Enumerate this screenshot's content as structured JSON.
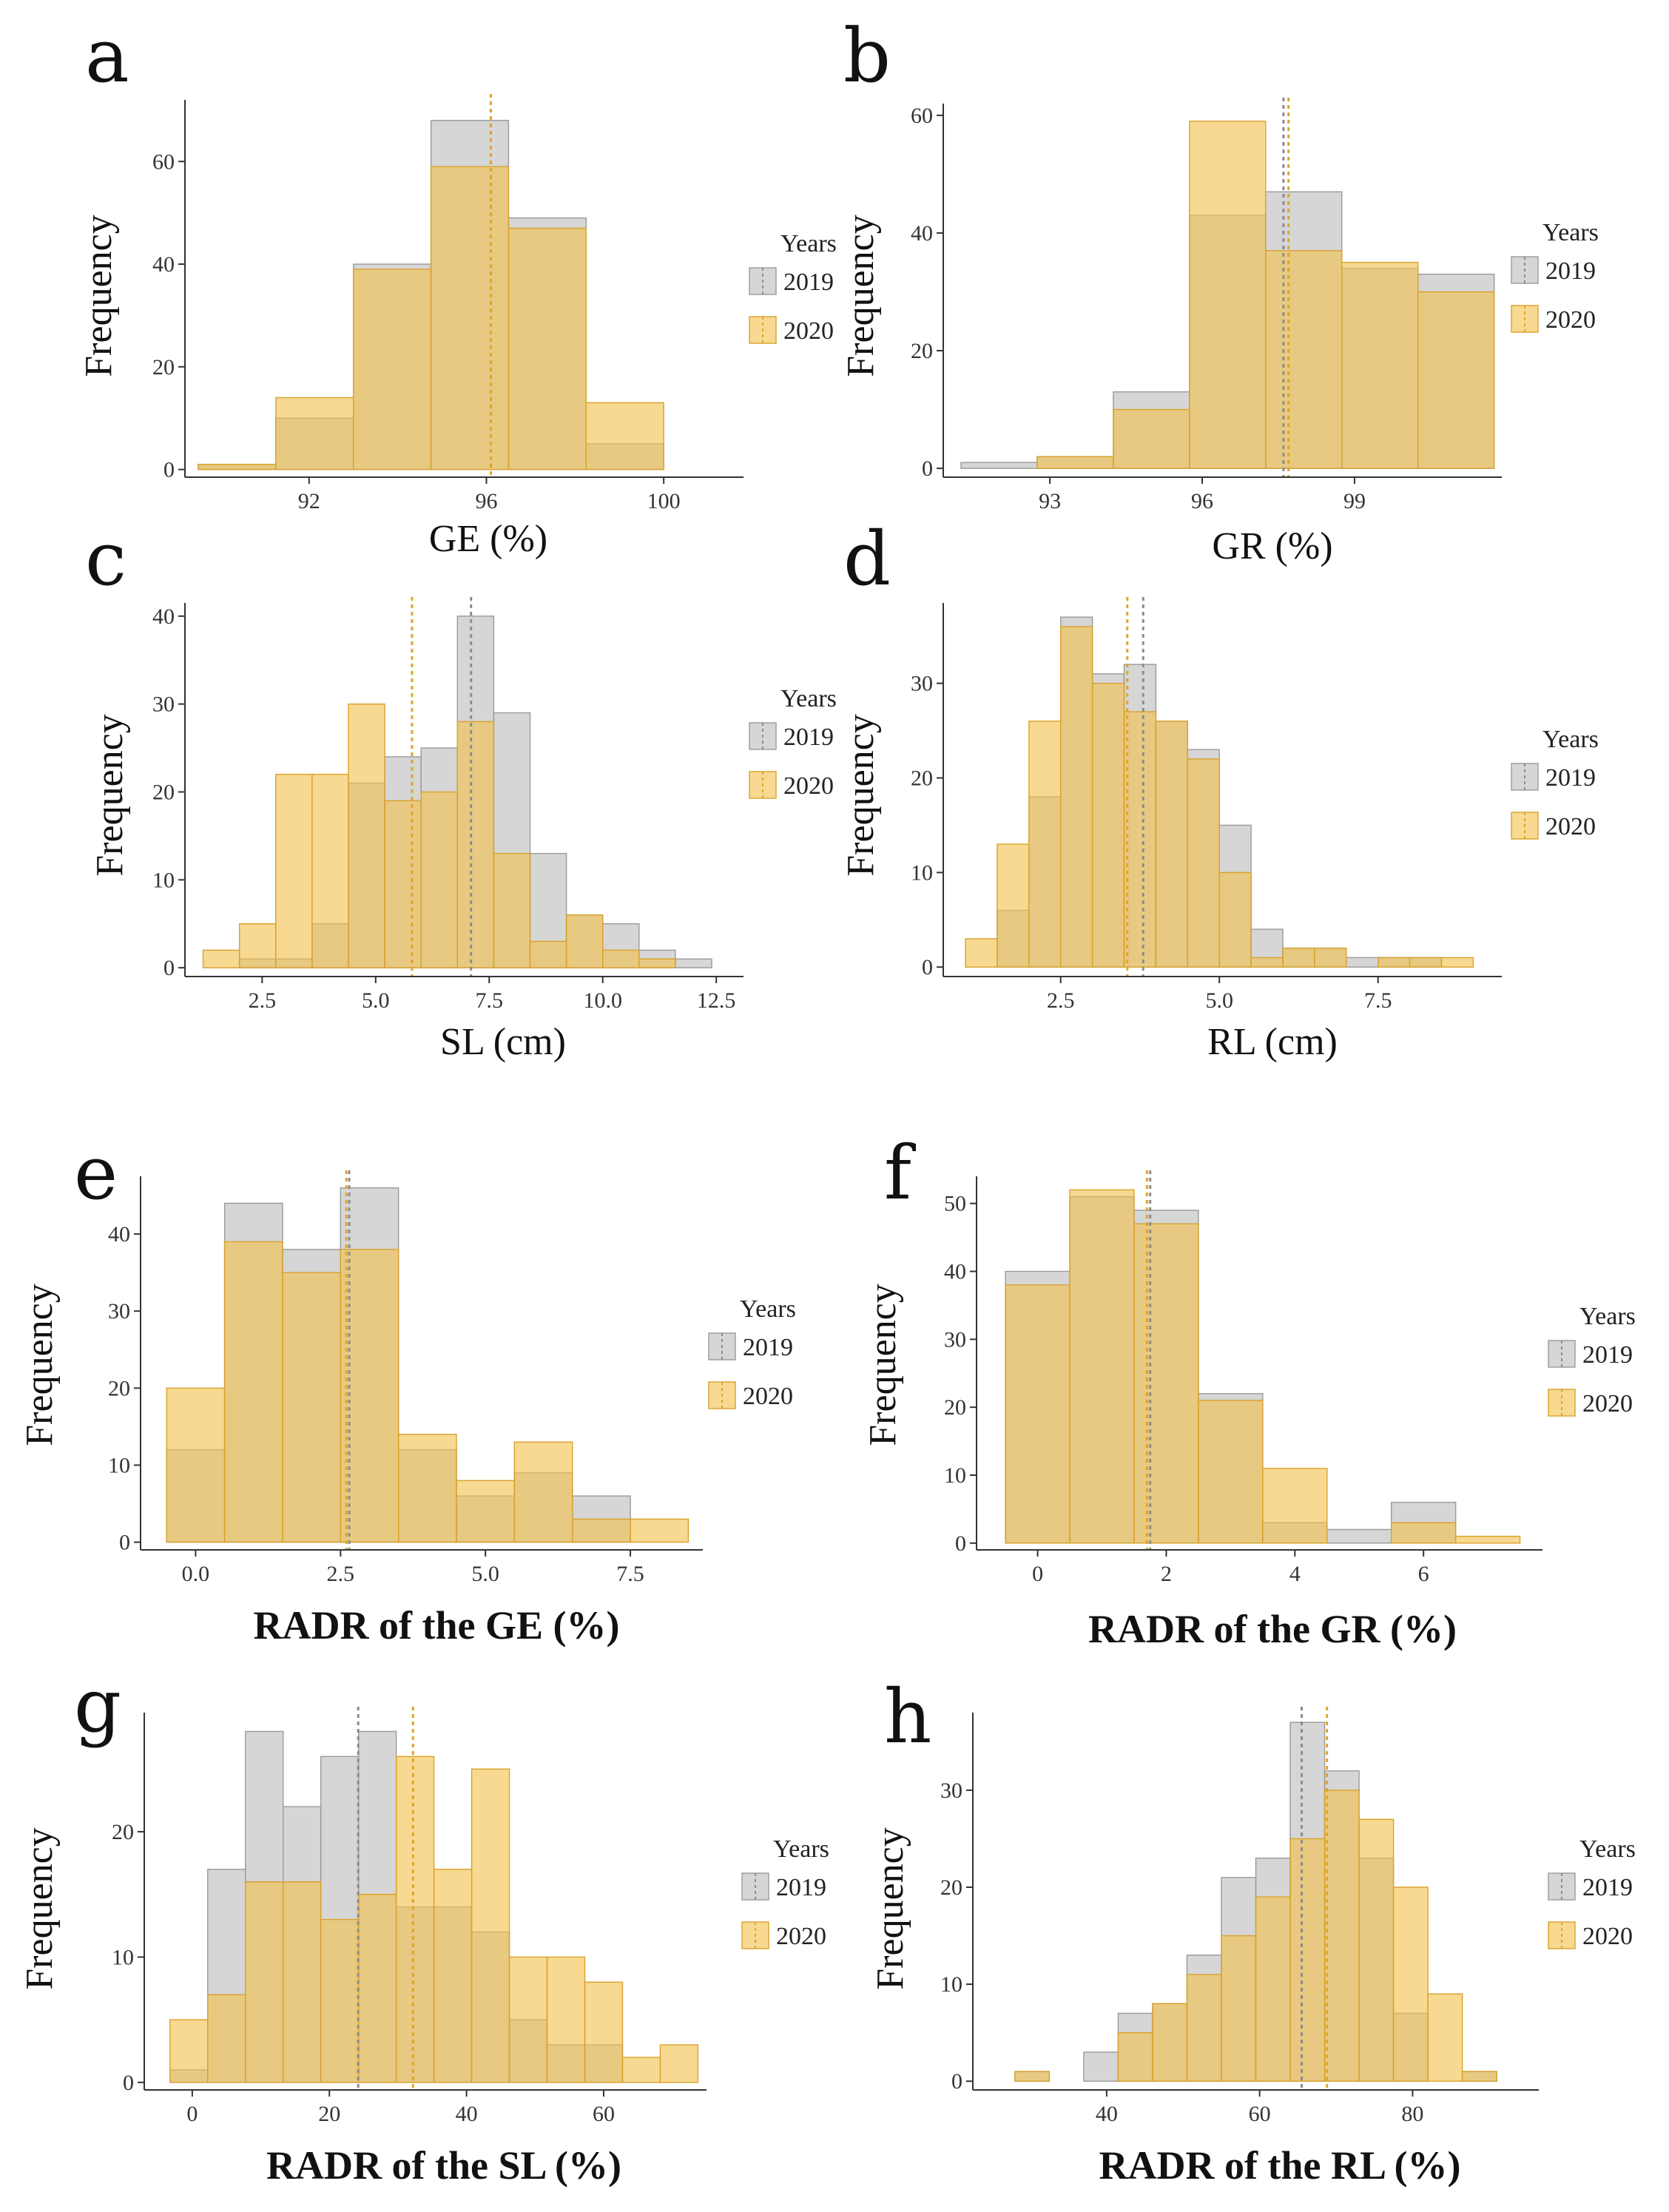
{
  "colors": {
    "y2019_fill": "#bdbdbd",
    "y2019_stroke": "#9a9a9a",
    "y2020_fill": "#f2c14e",
    "y2020_stroke": "#d9a22b",
    "axis": "#333333"
  },
  "chart_data": [
    {
      "panel": "a",
      "type": "bar",
      "xlabel": "GE (%)",
      "ylabel": "Frequency",
      "xlim": [
        89.2,
        101.8
      ],
      "ylim": [
        -1.5,
        72
      ],
      "xticks": [
        92,
        96,
        100
      ],
      "yticks": [
        0,
        20,
        40,
        60
      ],
      "bin_edges": [
        89.5,
        91.25,
        93.0,
        94.75,
        96.5,
        98.25,
        100.0,
        101.75
      ],
      "series": [
        {
          "name": "2019",
          "values": [
            1,
            10,
            40,
            68,
            49,
            5,
            0
          ]
        },
        {
          "name": "2020",
          "values": [
            1,
            14,
            39,
            59,
            47,
            13,
            0
          ]
        }
      ],
      "mean_lines": [
        {
          "name": "2019",
          "x": 96.1
        },
        {
          "name": "2020",
          "x": 96.1
        }
      ],
      "legend": {
        "title": "Years",
        "entries": [
          "2019",
          "2020"
        ]
      }
    },
    {
      "panel": "b",
      "type": "bar",
      "xlabel": "GR (%)",
      "ylabel": "Frequency",
      "xlim": [
        90.9,
        101.9
      ],
      "ylim": [
        -1.5,
        62
      ],
      "xticks": [
        93,
        96,
        99
      ],
      "yticks": [
        0,
        20,
        40,
        60
      ],
      "bin_edges": [
        91.25,
        92.75,
        94.25,
        95.75,
        97.25,
        98.75,
        100.25,
        101.75
      ],
      "series": [
        {
          "name": "2019",
          "values": [
            1,
            2,
            13,
            43,
            47,
            34,
            33
          ]
        },
        {
          "name": "2020",
          "values": [
            0,
            2,
            10,
            59,
            37,
            35,
            30
          ]
        }
      ],
      "mean_lines": [
        {
          "name": "2019",
          "x": 97.6
        },
        {
          "name": "2020",
          "x": 97.7
        }
      ],
      "legend": {
        "title": "Years",
        "entries": [
          "2019",
          "2020"
        ]
      }
    },
    {
      "panel": "c",
      "type": "bar",
      "xlabel": "SL (cm)",
      "ylabel": "Frequency",
      "xlim": [
        0.8,
        13.1
      ],
      "ylim": [
        -1,
        41.5
      ],
      "xticks": [
        2.5,
        5.0,
        7.5,
        10.0,
        12.5
      ],
      "yticks": [
        0,
        10,
        20,
        30,
        40
      ],
      "bin_edges": [
        1.2,
        2.0,
        2.8,
        3.6,
        4.4,
        5.2,
        6.0,
        6.8,
        7.6,
        8.4,
        9.2,
        10.0,
        10.8,
        11.6,
        12.4
      ],
      "series": [
        {
          "name": "2019",
          "values": [
            0,
            1,
            1,
            5,
            21,
            24,
            25,
            40,
            29,
            13,
            6,
            5,
            2,
            1
          ]
        },
        {
          "name": "2020",
          "values": [
            2,
            5,
            22,
            22,
            30,
            19,
            20,
            28,
            13,
            3,
            6,
            2,
            1,
            0
          ]
        }
      ],
      "mean_lines": [
        {
          "name": "2019",
          "x": 7.1
        },
        {
          "name": "2020",
          "x": 5.8
        }
      ],
      "legend": {
        "title": "Years",
        "entries": [
          "2019",
          "2020"
        ]
      }
    },
    {
      "panel": "d",
      "type": "bar",
      "xlabel": "RL (cm)",
      "ylabel": "Frequency",
      "xlim": [
        0.65,
        9.45
      ],
      "ylim": [
        -1,
        38.5
      ],
      "xticks": [
        2.5,
        5.0,
        7.5
      ],
      "yticks": [
        0,
        10,
        20,
        30
      ],
      "bin_edges": [
        1.0,
        1.5,
        2.0,
        2.5,
        3.0,
        3.5,
        4.0,
        4.5,
        5.0,
        5.5,
        6.0,
        6.5,
        7.0,
        7.5,
        8.0,
        8.5,
        9.0
      ],
      "series": [
        {
          "name": "2019",
          "values": [
            0,
            6,
            18,
            37,
            31,
            32,
            26,
            23,
            15,
            4,
            2,
            2,
            1,
            1,
            1,
            0
          ]
        },
        {
          "name": "2020",
          "values": [
            3,
            13,
            26,
            36,
            30,
            27,
            26,
            22,
            10,
            1,
            2,
            2,
            0,
            1,
            1,
            1
          ]
        }
      ],
      "mean_lines": [
        {
          "name": "2019",
          "x": 3.8
        },
        {
          "name": "2020",
          "x": 3.55
        }
      ],
      "legend": {
        "title": "Years",
        "entries": [
          "2019",
          "2020"
        ]
      }
    },
    {
      "panel": "e",
      "type": "bar",
      "xlabel": "RADR of the GE (%)",
      "ylabel": "Frequency",
      "xlim": [
        -0.95,
        8.75
      ],
      "ylim": [
        -1,
        47.5
      ],
      "xticks": [
        0,
        2.5,
        5,
        7.5
      ],
      "yticks": [
        0,
        10,
        20,
        30,
        40
      ],
      "bin_edges": [
        -0.5,
        0.5,
        1.5,
        2.5,
        3.5,
        4.5,
        5.5,
        6.5,
        7.5,
        8.5
      ],
      "series": [
        {
          "name": "2019",
          "values": [
            12,
            44,
            38,
            46,
            12,
            6,
            9,
            6,
            0
          ]
        },
        {
          "name": "2020",
          "values": [
            20,
            39,
            35,
            38,
            14,
            8,
            13,
            3,
            3
          ]
        }
      ],
      "mean_lines": [
        {
          "name": "2019",
          "x": 2.65
        },
        {
          "name": "2020",
          "x": 2.6
        }
      ],
      "legend": {
        "title": "Years",
        "entries": [
          "2019",
          "2020"
        ]
      }
    },
    {
      "panel": "f",
      "type": "bar",
      "xlabel": "RADR of the GR (%)",
      "ylabel": "Frequency",
      "xlim": [
        -0.95,
        7.85
      ],
      "ylim": [
        -1,
        54
      ],
      "xticks": [
        0,
        2,
        4,
        6
      ],
      "yticks": [
        0,
        10,
        20,
        30,
        40,
        50
      ],
      "bin_edges": [
        -0.5,
        0.5,
        1.5,
        2.5,
        3.5,
        4.5,
        5.5,
        6.5,
        7.5
      ],
      "series": [
        {
          "name": "2019",
          "values": [
            40,
            51,
            49,
            22,
            3,
            2,
            6,
            0
          ]
        },
        {
          "name": "2020",
          "values": [
            38,
            52,
            47,
            21,
            11,
            0,
            3,
            1
          ]
        }
      ],
      "mean_lines": [
        {
          "name": "2019",
          "x": 1.75
        },
        {
          "name": "2020",
          "x": 1.7
        }
      ],
      "legend": {
        "title": "Years",
        "entries": [
          "2019",
          "2020"
        ]
      }
    },
    {
      "panel": "g",
      "type": "bar",
      "xlabel": "RADR of the SL (%)",
      "ylabel": "Frequency",
      "xlim": [
        -7,
        75
      ],
      "ylim": [
        -0.6,
        29.5
      ],
      "xticks": [
        0,
        20,
        40,
        60
      ],
      "yticks": [
        0,
        10,
        20
      ],
      "bin_edges": [
        -3.25,
        2.25,
        7.75,
        13.25,
        18.75,
        24.25,
        29.75,
        35.25,
        40.75,
        46.25,
        51.75,
        57.25,
        62.75,
        68.25,
        73.75
      ],
      "series": [
        {
          "name": "2019",
          "values": [
            1,
            17,
            28,
            22,
            26,
            28,
            14,
            14,
            12,
            5,
            3,
            3,
            0,
            0
          ]
        },
        {
          "name": "2020",
          "values": [
            5,
            7,
            16,
            16,
            13,
            15,
            26,
            17,
            25,
            10,
            10,
            8,
            2,
            3
          ]
        }
      ],
      "mean_lines": [
        {
          "name": "2019",
          "x": 24.2
        },
        {
          "name": "2020",
          "x": 32.2
        }
      ],
      "legend": {
        "title": "Years",
        "entries": [
          "2019",
          "2020"
        ]
      }
    },
    {
      "panel": "h",
      "type": "bar",
      "xlabel": "RADR of the RL (%)",
      "ylabel": "Frequency",
      "xlim": [
        22.5,
        96.5
      ],
      "ylim": [
        -0.9,
        38
      ],
      "xticks": [
        40,
        60,
        80
      ],
      "yticks": [
        0,
        10,
        20,
        30
      ],
      "bin_edges": [
        28,
        32.5,
        37,
        41.5,
        46,
        50.5,
        55,
        59.5,
        64,
        68.5,
        73,
        77.5,
        82,
        86.5,
        91
      ],
      "series": [
        {
          "name": "2019",
          "values": [
            1,
            0,
            3,
            7,
            8,
            13,
            21,
            23,
            37,
            32,
            23,
            7,
            0,
            1
          ]
        },
        {
          "name": "2020",
          "values": [
            1,
            0,
            0,
            5,
            8,
            11,
            15,
            19,
            25,
            30,
            27,
            20,
            9,
            1
          ]
        }
      ],
      "mean_lines": [
        {
          "name": "2019",
          "x": 65.5
        },
        {
          "name": "2020",
          "x": 68.8
        }
      ],
      "legend": {
        "title": "Years",
        "entries": [
          "2019",
          "2020"
        ]
      }
    }
  ]
}
